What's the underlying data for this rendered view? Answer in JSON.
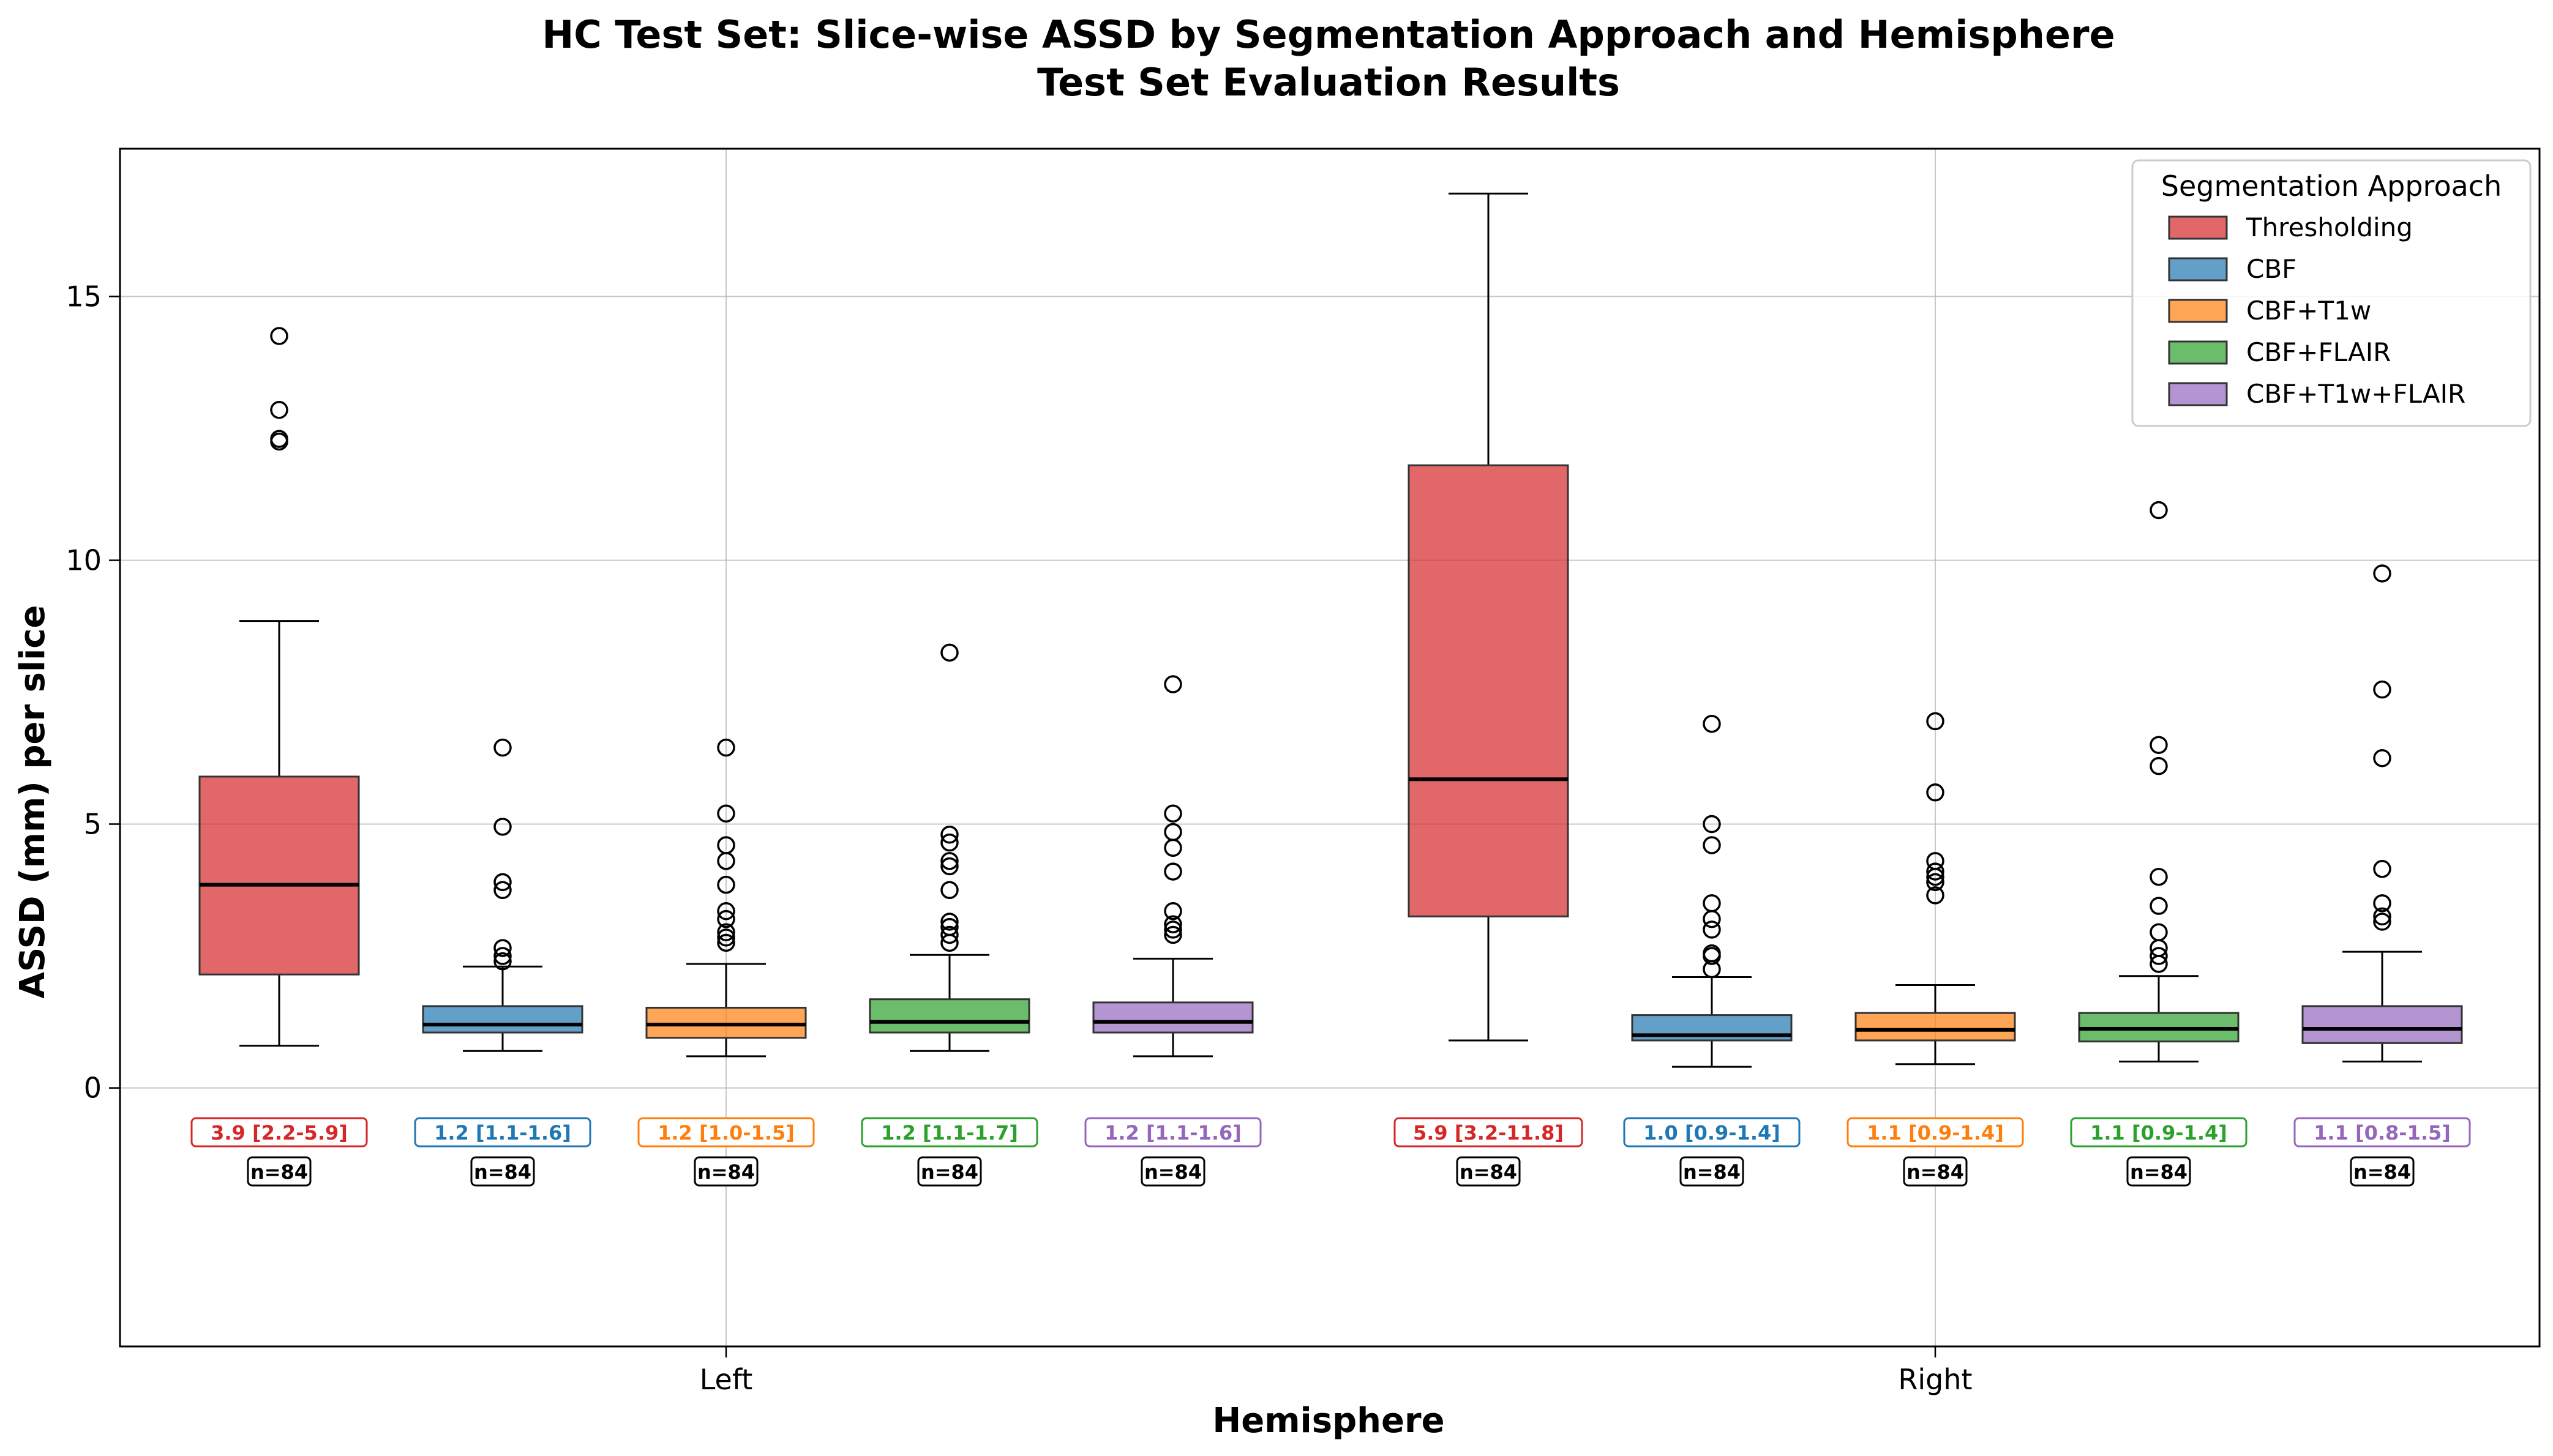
{
  "chart_data": {
    "type": "box",
    "title": "HC Test Set: Slice-wise ASSD by Segmentation Approach and Hemisphere",
    "subtitle": "Test Set Evaluation Results",
    "xlabel": "Hemisphere",
    "ylabel": "ASSD (mm) per slice",
    "categories": [
      "Left",
      "Right"
    ],
    "ylim": [
      -4.9,
      17.8
    ],
    "yticks": [
      0,
      5,
      10,
      15
    ],
    "grid": true,
    "legend": {
      "title": "Segmentation Approach",
      "placement": "top-right"
    },
    "series": [
      {
        "name": "Thresholding",
        "color": "#d62728",
        "boxes": [
          {
            "category": "Left",
            "whisker_low": 0.8,
            "q1": 2.15,
            "median": 3.85,
            "q3": 5.9,
            "whisker_high": 8.85,
            "outliers": [
              12.25,
              12.3,
              12.85,
              14.25
            ],
            "stat_label": "3.9 [2.2-5.9]",
            "n_label": "n=84"
          },
          {
            "category": "Right",
            "whisker_low": 0.9,
            "q1": 3.25,
            "median": 5.85,
            "q3": 11.8,
            "whisker_high": 16.95,
            "outliers": [],
            "stat_label": "5.9 [3.2-11.8]",
            "n_label": "n=84"
          }
        ]
      },
      {
        "name": "CBF",
        "color": "#1f77b4",
        "boxes": [
          {
            "category": "Left",
            "whisker_low": 0.7,
            "q1": 1.05,
            "median": 1.2,
            "q3": 1.55,
            "whisker_high": 2.3,
            "outliers": [
              2.4,
              2.5,
              2.65,
              3.75,
              3.9,
              4.95,
              6.45
            ],
            "stat_label": "1.2 [1.1-1.6]",
            "n_label": "n=84"
          },
          {
            "category": "Right",
            "whisker_low": 0.4,
            "q1": 0.9,
            "median": 1.0,
            "q3": 1.38,
            "whisker_high": 2.1,
            "outliers": [
              2.25,
              2.5,
              2.55,
              3.0,
              3.2,
              3.5,
              4.6,
              5.0,
              6.9
            ],
            "stat_label": "1.0 [0.9-1.4]",
            "n_label": "n=84"
          }
        ]
      },
      {
        "name": "CBF+T1w",
        "color": "#ff7f0e",
        "boxes": [
          {
            "category": "Left",
            "whisker_low": 0.6,
            "q1": 0.95,
            "median": 1.2,
            "q3": 1.52,
            "whisker_high": 2.35,
            "outliers": [
              2.75,
              2.85,
              2.95,
              3.2,
              3.35,
              3.85,
              4.3,
              4.6,
              5.2,
              6.45
            ],
            "stat_label": "1.2 [1.0-1.5]",
            "n_label": "n=84"
          },
          {
            "category": "Right",
            "whisker_low": 0.45,
            "q1": 0.9,
            "median": 1.1,
            "q3": 1.42,
            "whisker_high": 1.95,
            "outliers": [
              3.65,
              3.9,
              4.0,
              4.1,
              4.3,
              5.6,
              6.95
            ],
            "stat_label": "1.1 [0.9-1.4]",
            "n_label": "n=84"
          }
        ]
      },
      {
        "name": "CBF+FLAIR",
        "color": "#2ca02c",
        "boxes": [
          {
            "category": "Left",
            "whisker_low": 0.7,
            "q1": 1.05,
            "median": 1.25,
            "q3": 1.68,
            "whisker_high": 2.52,
            "outliers": [
              2.75,
              2.9,
              3.05,
              3.15,
              3.75,
              4.2,
              4.3,
              4.65,
              4.8,
              8.25
            ],
            "stat_label": "1.2 [1.1-1.7]",
            "n_label": "n=84"
          },
          {
            "category": "Right",
            "whisker_low": 0.5,
            "q1": 0.88,
            "median": 1.12,
            "q3": 1.42,
            "whisker_high": 2.12,
            "outliers": [
              2.35,
              2.5,
              2.65,
              2.95,
              3.45,
              4.0,
              6.1,
              6.5,
              10.95
            ],
            "stat_label": "1.1 [0.9-1.4]",
            "n_label": "n=84"
          }
        ]
      },
      {
        "name": "CBF+T1w+FLAIR",
        "color": "#9467bd",
        "boxes": [
          {
            "category": "Left",
            "whisker_low": 0.6,
            "q1": 1.05,
            "median": 1.25,
            "q3": 1.62,
            "whisker_high": 2.45,
            "outliers": [
              2.9,
              3.0,
              3.1,
              3.35,
              4.1,
              4.55,
              4.85,
              5.2,
              7.65
            ],
            "stat_label": "1.2 [1.1-1.6]",
            "n_label": "n=84"
          },
          {
            "category": "Right",
            "whisker_low": 0.5,
            "q1": 0.85,
            "median": 1.12,
            "q3": 1.55,
            "whisker_high": 2.58,
            "outliers": [
              3.15,
              3.25,
              3.5,
              4.15,
              6.25,
              7.55,
              9.75
            ],
            "stat_label": "1.1 [0.8-1.5]",
            "n_label": "n=84"
          }
        ]
      }
    ]
  }
}
